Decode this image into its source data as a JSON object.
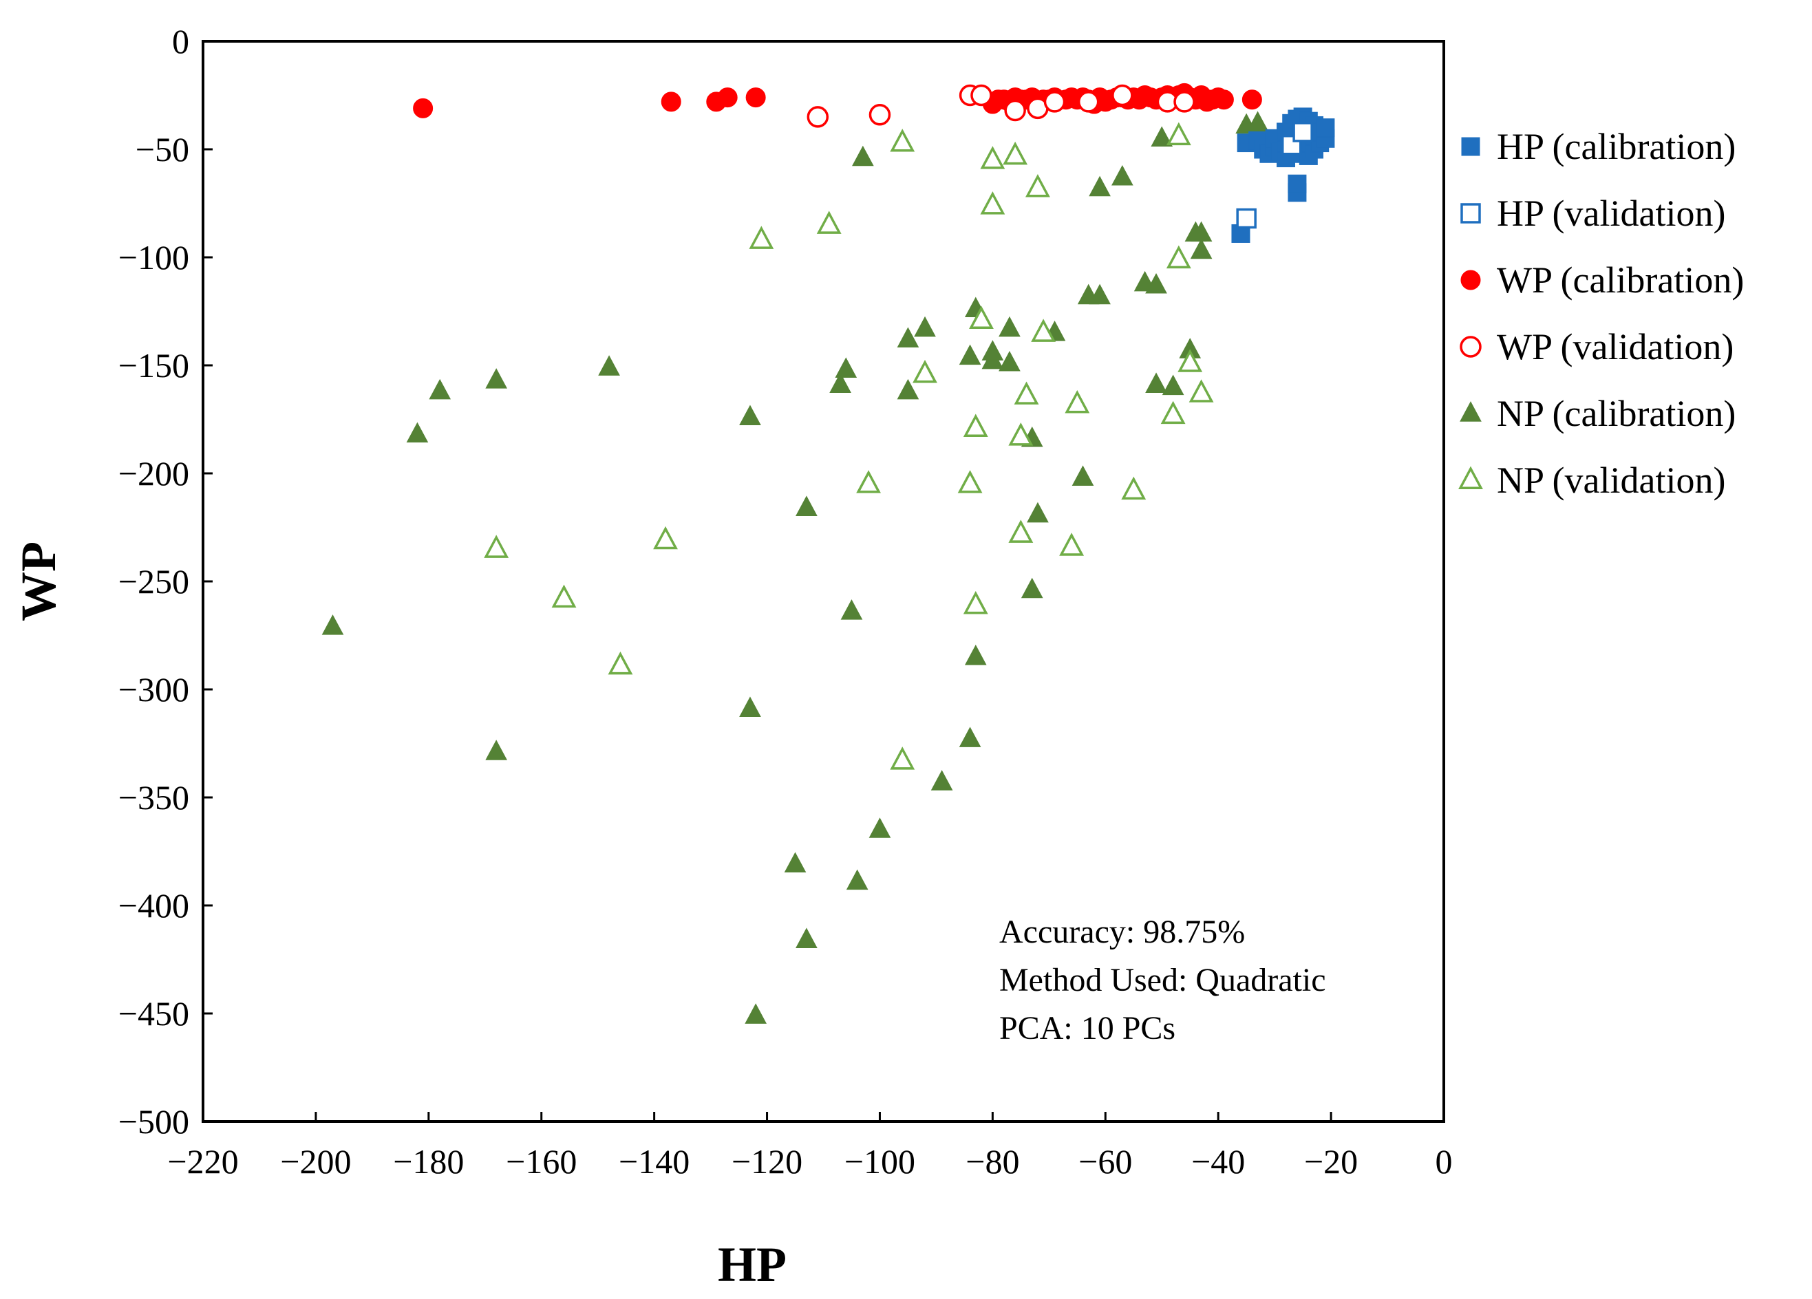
{
  "chart_data": {
    "type": "scatter",
    "title": "",
    "xlabel": "HP",
    "ylabel": "WP",
    "xlim": [
      -220,
      0
    ],
    "ylim": [
      -500,
      0
    ],
    "xticks": [
      -220,
      -200,
      -180,
      -160,
      -140,
      -120,
      -100,
      -80,
      -60,
      -40,
      -20,
      0
    ],
    "yticks": [
      0,
      -50,
      -100,
      -150,
      -200,
      -250,
      -300,
      -350,
      -400,
      -450,
      -500
    ],
    "tick_labels_x": [
      "−220",
      "−200",
      "−180",
      "−160",
      "−140",
      "−120",
      "−100",
      "−80",
      "−60",
      "−40",
      "−20",
      "0"
    ],
    "tick_labels_y": [
      "0",
      "−50",
      "−100",
      "−150",
      "−200",
      "−250",
      "−300",
      "−350",
      "−400",
      "−450",
      "−500"
    ],
    "grid": false,
    "legend_position": "right",
    "annotations": [
      "Accuracy: 98.75%",
      "Method Used: Quadratic",
      "PCA: 10 PCs"
    ],
    "series": [
      {
        "name": "HP (calibration)",
        "marker": "square",
        "filled": true,
        "color": "#1f6fbf",
        "points": [
          [
            -36,
            -89
          ],
          [
            -35,
            -47
          ],
          [
            -33,
            -46
          ],
          [
            -32,
            -50
          ],
          [
            -31,
            -52
          ],
          [
            -30,
            -49
          ],
          [
            -30,
            -45
          ],
          [
            -29,
            -51
          ],
          [
            -28,
            -54
          ],
          [
            -28,
            -47
          ],
          [
            -28,
            -42
          ],
          [
            -27,
            -50
          ],
          [
            -27,
            -45
          ],
          [
            -27,
            -38
          ],
          [
            -26,
            -70
          ],
          [
            -26,
            -66
          ],
          [
            -26,
            -52
          ],
          [
            -26,
            -43
          ],
          [
            -26,
            -36
          ],
          [
            -25,
            -48
          ],
          [
            -25,
            -44
          ],
          [
            -25,
            -40
          ],
          [
            -25,
            -35
          ],
          [
            -24,
            -53
          ],
          [
            -24,
            -47
          ],
          [
            -24,
            -41
          ],
          [
            -24,
            -37
          ],
          [
            -23,
            -50
          ],
          [
            -23,
            -44
          ],
          [
            -23,
            -39
          ],
          [
            -22,
            -47
          ],
          [
            -22,
            -42
          ],
          [
            -21,
            -45
          ],
          [
            -21,
            -40
          ]
        ]
      },
      {
        "name": "HP (validation)",
        "marker": "square",
        "filled": false,
        "color": "#1f6fbf",
        "points": [
          [
            -35,
            -82
          ],
          [
            -27,
            -48
          ],
          [
            -25,
            -42
          ]
        ]
      },
      {
        "name": "WP (calibration)",
        "marker": "circle",
        "filled": true,
        "color": "#ff0000",
        "points": [
          [
            -181,
            -31
          ],
          [
            -137,
            -28
          ],
          [
            -129,
            -28
          ],
          [
            -127,
            -26
          ],
          [
            -122,
            -26
          ],
          [
            -80,
            -29
          ],
          [
            -79,
            -27
          ],
          [
            -78,
            -27
          ],
          [
            -77,
            -28
          ],
          [
            -76,
            -26
          ],
          [
            -75,
            -27
          ],
          [
            -74,
            -27
          ],
          [
            -73,
            -26
          ],
          [
            -72,
            -28
          ],
          [
            -71,
            -27
          ],
          [
            -70,
            -27
          ],
          [
            -69,
            -26
          ],
          [
            -67,
            -27
          ],
          [
            -66,
            -26
          ],
          [
            -65,
            -27
          ],
          [
            -64,
            -26
          ],
          [
            -63,
            -27
          ],
          [
            -62,
            -29
          ],
          [
            -61,
            -26
          ],
          [
            -60,
            -28
          ],
          [
            -59,
            -27
          ],
          [
            -58,
            -26
          ],
          [
            -57,
            -26
          ],
          [
            -56,
            -27
          ],
          [
            -55,
            -26
          ],
          [
            -54,
            -27
          ],
          [
            -53,
            -25
          ],
          [
            -52,
            -26
          ],
          [
            -51,
            -27
          ],
          [
            -50,
            -26
          ],
          [
            -49,
            -25
          ],
          [
            -48,
            -26
          ],
          [
            -47,
            -25
          ],
          [
            -46,
            -24
          ],
          [
            -45,
            -26
          ],
          [
            -44,
            -27
          ],
          [
            -43,
            -25
          ],
          [
            -42,
            -28
          ],
          [
            -41,
            -27
          ],
          [
            -40,
            -26
          ],
          [
            -39,
            -27
          ],
          [
            -34,
            -27
          ]
        ]
      },
      {
        "name": "WP (validation)",
        "marker": "circle",
        "filled": false,
        "color": "#ff0000",
        "points": [
          [
            -111,
            -35
          ],
          [
            -100,
            -34
          ],
          [
            -84,
            -25
          ],
          [
            -82,
            -25
          ],
          [
            -76,
            -32
          ],
          [
            -72,
            -31
          ],
          [
            -69,
            -28
          ],
          [
            -63,
            -28
          ],
          [
            -57,
            -25
          ],
          [
            -49,
            -28
          ],
          [
            -46,
            -28
          ]
        ]
      },
      {
        "name": "NP (calibration)",
        "marker": "triangle",
        "filled": true,
        "color": "#548235",
        "points": [
          [
            -197,
            -271
          ],
          [
            -182,
            -182
          ],
          [
            -178,
            -162
          ],
          [
            -168,
            -157
          ],
          [
            -168,
            -329
          ],
          [
            -148,
            -151
          ],
          [
            -123,
            -174
          ],
          [
            -123,
            -309
          ],
          [
            -122,
            -451
          ],
          [
            -115,
            -381
          ],
          [
            -113,
            -216
          ],
          [
            -113,
            -416
          ],
          [
            -105,
            -264
          ],
          [
            -104,
            -389
          ],
          [
            -103,
            -54
          ],
          [
            -107,
            -159
          ],
          [
            -106,
            -152
          ],
          [
            -100,
            -365
          ],
          [
            -95,
            -162
          ],
          [
            -95,
            -138
          ],
          [
            -92,
            -133
          ],
          [
            -89,
            -343
          ],
          [
            -84,
            -323
          ],
          [
            -83,
            -285
          ],
          [
            -84,
            -146
          ],
          [
            -83,
            -124
          ],
          [
            -80,
            -148
          ],
          [
            -80,
            -144
          ],
          [
            -77,
            -133
          ],
          [
            -77,
            -149
          ],
          [
            -73,
            -184
          ],
          [
            -73,
            -254
          ],
          [
            -72,
            -219
          ],
          [
            -69,
            -135
          ],
          [
            -64,
            -202
          ],
          [
            -63,
            -118
          ],
          [
            -61,
            -118
          ],
          [
            -61,
            -68
          ],
          [
            -57,
            -63
          ],
          [
            -53,
            -112
          ],
          [
            -51,
            -113
          ],
          [
            -51,
            -159
          ],
          [
            -50,
            -45
          ],
          [
            -48,
            -160
          ],
          [
            -45,
            -143
          ],
          [
            -44,
            -89
          ],
          [
            -43,
            -89
          ],
          [
            -43,
            -97
          ],
          [
            -35,
            -39
          ],
          [
            -33,
            -38
          ]
        ]
      },
      {
        "name": "NP (validation)",
        "marker": "triangle",
        "filled": false,
        "color": "#70ad47",
        "points": [
          [
            -168,
            -235
          ],
          [
            -156,
            -258
          ],
          [
            -146,
            -289
          ],
          [
            -138,
            -231
          ],
          [
            -121,
            -92
          ],
          [
            -109,
            -85
          ],
          [
            -102,
            -205
          ],
          [
            -96,
            -47
          ],
          [
            -96,
            -333
          ],
          [
            -92,
            -154
          ],
          [
            -84,
            -205
          ],
          [
            -83,
            -179
          ],
          [
            -83,
            -261
          ],
          [
            -82,
            -129
          ],
          [
            -80,
            -55
          ],
          [
            -80,
            -76
          ],
          [
            -76,
            -53
          ],
          [
            -75,
            -183
          ],
          [
            -75,
            -228
          ],
          [
            -74,
            -164
          ],
          [
            -72,
            -68
          ],
          [
            -71,
            -135
          ],
          [
            -66,
            -234
          ],
          [
            -65,
            -168
          ],
          [
            -55,
            -208
          ],
          [
            -48,
            -173
          ],
          [
            -47,
            -101
          ],
          [
            -47,
            -44
          ],
          [
            -45,
            -149
          ],
          [
            -43,
            -163
          ]
        ]
      }
    ]
  }
}
